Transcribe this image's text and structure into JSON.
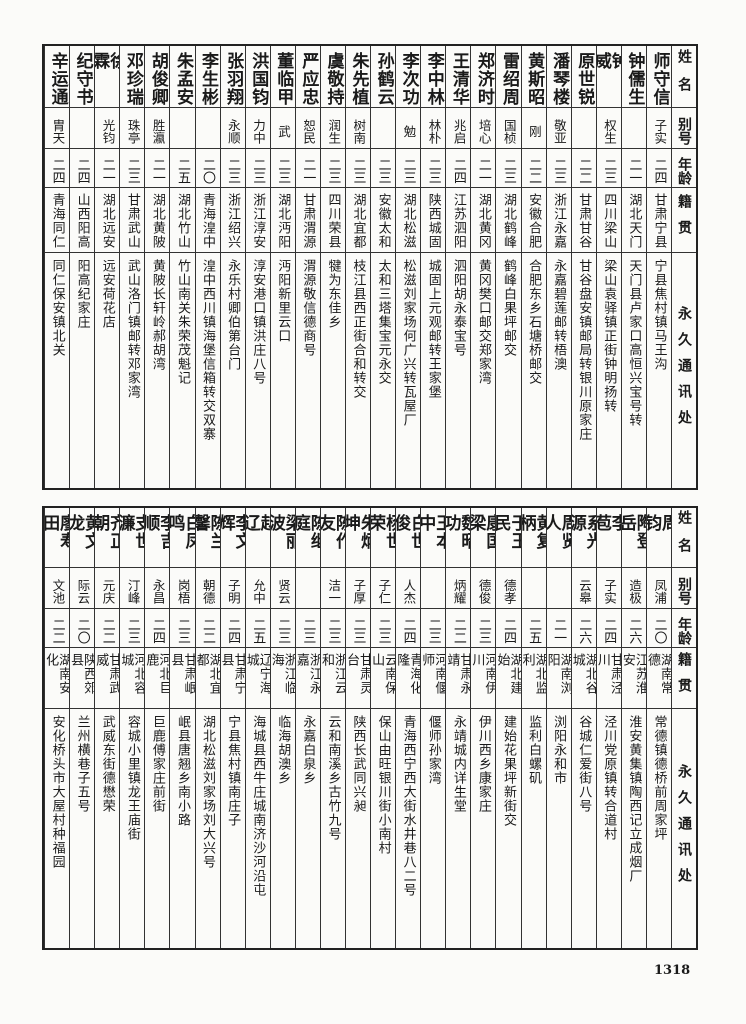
{
  "headers": {
    "name": "姓名",
    "alias": "别号",
    "age": "年龄",
    "origin": "籍贯",
    "address": "永久通讯处"
  },
  "top_table": [
    {
      "name": "师守信",
      "alias": "子实",
      "age": "二四",
      "origin": "甘肃宁县",
      "address": "宁县焦村镇马王沟"
    },
    {
      "name": "钟儒生",
      "alias": "",
      "age": "二一",
      "origin": "湖北天门",
      "address": "天门县卢家口高恒兴宝号转"
    },
    {
      "name": "钟威",
      "alias": "权生",
      "age": "二三",
      "origin": "四川梁山",
      "address": "梁山袁驿镇正街钟明扬转"
    },
    {
      "name": "原世锐",
      "alias": "",
      "age": "二二",
      "origin": "甘肃甘谷",
      "address": "甘谷盘安镇邮局转银川原家庄"
    },
    {
      "name": "潘琴楼",
      "alias": "敬亚",
      "age": "二三",
      "origin": "浙江永嘉",
      "address": "永嘉碧莲邮转梧澳"
    },
    {
      "name": "黄斯昭",
      "alias": "刚",
      "age": "二二",
      "origin": "安徽合肥",
      "address": "合肥东乡石塘桥邮交"
    },
    {
      "name": "雷绍周",
      "alias": "国桢",
      "age": "二三",
      "origin": "湖北鹤峰",
      "address": "鹤峰白果坪邮交"
    },
    {
      "name": "郑济时",
      "alias": "培心",
      "age": "二一",
      "origin": "湖北黄冈",
      "address": "黄冈樊口邮交郑家湾"
    },
    {
      "name": "王清华",
      "alias": "兆启",
      "age": "二四",
      "origin": "江苏泗阳",
      "address": "泗阳胡永泰宝号"
    },
    {
      "name": "李中林",
      "alias": "林朴",
      "age": "二三",
      "origin": "陕西城固",
      "address": "城固上元观邮转王家堡"
    },
    {
      "name": "李次功",
      "alias": "勉",
      "age": "二三",
      "origin": "湖北松滋",
      "address": "松滋刘家场何广兴转瓦屋厂"
    },
    {
      "name": "孙鹤云",
      "alias": "",
      "age": "二三",
      "origin": "安徽太和",
      "address": "太和三塔集宝元永交"
    },
    {
      "name": "朱先植",
      "alias": "树南",
      "age": "二三",
      "origin": "湖北宜都",
      "address": "枝江县西正街合和转交"
    },
    {
      "name": "虞敬持",
      "alias": "润生",
      "age": "二三",
      "origin": "四川荣县",
      "address": "犍为东佳乡"
    },
    {
      "name": "严应忠",
      "alias": "恕民",
      "age": "二一",
      "origin": "甘肃渭源",
      "address": "渭源敬信德商号"
    },
    {
      "name": "董临甲",
      "alias": "武",
      "age": "二三",
      "origin": "湖北沔阳",
      "address": "沔阳新里云口"
    },
    {
      "name": "洪国钧",
      "alias": "力中",
      "age": "二三",
      "origin": "浙江淳安",
      "address": "淳安港口镇洪庄八号"
    },
    {
      "name": "张羽翔",
      "alias": "永顺",
      "age": "二三",
      "origin": "浙江绍兴",
      "address": "永乐村卿伯第台门"
    },
    {
      "name": "李生彬",
      "alias": "",
      "age": "二〇",
      "origin": "青海湟中",
      "address": "湟中西川镇海堡信箱转交双寨"
    },
    {
      "name": "朱孟安",
      "alias": "",
      "age": "二五",
      "origin": "湖北竹山",
      "address": "竹山南关朱荣茂魁记"
    },
    {
      "name": "胡俊卿",
      "alias": "胜瀛",
      "age": "二一",
      "origin": "湖北黄陂",
      "address": "黄陂长轩岭郝胡湾"
    },
    {
      "name": "邓珍瑞",
      "alias": "珠亭",
      "age": "二三",
      "origin": "甘肃武山",
      "address": "武山洛门镇邮转邓家湾"
    },
    {
      "name": "徐霖",
      "alias": "光钧",
      "age": "二一",
      "origin": "湖北远安",
      "address": "远安荷花店"
    },
    {
      "name": "纪守书",
      "alias": "",
      "age": "二四",
      "origin": "山西阳高",
      "address": "阳高纪家庄"
    },
    {
      "name": "辛运通",
      "alias": "胄天",
      "age": "二四",
      "origin": "青海同仁",
      "address": "同仁保安镇北关"
    }
  ],
  "bottom_table": [
    {
      "name": "周钧",
      "alias": "凤浦",
      "age": "二〇",
      "origin": "湖南常德",
      "address": "常德镇德桥前周家坪"
    },
    {
      "name": "陶登岳",
      "alias": "造极",
      "age": "二六",
      "origin": "江苏淮安",
      "address": "淮安黄集镇陶西记立成烟厂"
    },
    {
      "name": "李苞",
      "alias": "子实",
      "age": "二四",
      "origin": "甘肃泾川",
      "address": "泾川党原镇转合道村"
    },
    {
      "name": "系光源",
      "alias": "云皋",
      "age": "二六",
      "origin": "湖北谷城",
      "address": "谷城仁爱街八号"
    },
    {
      "name": "周贤人",
      "alias": "",
      "age": "二一",
      "origin": "湖南浏阳",
      "address": "浏阳永和市"
    },
    {
      "name": "黄复柄",
      "alias": "",
      "age": "二五",
      "origin": "湖北监利",
      "address": "监利白螺矶"
    },
    {
      "name": "于玉民",
      "alias": "德孝",
      "age": "二四",
      "origin": "湖北建始",
      "address": "建始花果坪新街交"
    },
    {
      "name": "康国梁",
      "alias": "德俊",
      "age": "二三",
      "origin": "河南伊川",
      "address": "伊川西乡康家庄"
    },
    {
      "name": "魏昭功",
      "alias": "炳耀",
      "age": "二二",
      "origin": "甘肃永靖",
      "address": "永靖城内详生堂"
    },
    {
      "name": "王本中",
      "alias": "",
      "age": "二三",
      "origin": "河南偃师",
      "address": "偃师孙家湾"
    },
    {
      "name": "白世俊",
      "alias": "人杰",
      "age": "二四",
      "origin": "青海化隆",
      "address": "青海西宁西大街水井巷八二号"
    },
    {
      "name": "杨世荣",
      "alias": "子仁",
      "age": "二三",
      "origin": "云南保山",
      "address": "保山由旺银川街小南村"
    },
    {
      "name": "朱炳坤",
      "alias": "子厚",
      "age": "二三",
      "origin": "甘肃灵台",
      "address": "陕西长武同兴昶"
    },
    {
      "name": "陈作友",
      "alias": "洁一",
      "age": "二三",
      "origin": "浙江云和",
      "address": "云和南溪乡古竹九号"
    },
    {
      "name": "陈继庭",
      "alias": "",
      "age": "二三",
      "origin": "浙江永嘉",
      "address": "永嘉白泉乡"
    },
    {
      "name": "梁丽波",
      "alias": "贤云",
      "age": "二三",
      "origin": "浙江临海",
      "address": "临海胡澳乡"
    },
    {
      "name": "赵辽",
      "alias": "允中",
      "age": "二五",
      "origin": "辽宁海城",
      "address": "海城县西牛庄城南济沙河沿屯"
    },
    {
      "name": "李文辉",
      "alias": "子明",
      "age": "二四",
      "origin": "甘肃宁县",
      "address": "宁县焦村镇南庄子"
    },
    {
      "name": "陈兰馨",
      "alias": "朝德",
      "age": "二二",
      "origin": "湖北宜都",
      "address": "湖北松滋刘家场刘大兴号"
    },
    {
      "name": "白凤鸣",
      "alias": "岗梧",
      "age": "二三",
      "origin": "甘肃岷县",
      "address": "岷县唐翘乡南小路"
    },
    {
      "name": "李吉顺",
      "alias": "永昌",
      "age": "二四",
      "origin": "河北巨鹿",
      "address": "巨鹿傅家庄前街"
    },
    {
      "name": "支世濂",
      "alias": "汀峰",
      "age": "二三",
      "origin": "河北容城",
      "address": "容城小里镇龙王庙街"
    },
    {
      "name": "齐正朝",
      "alias": "元庆",
      "age": "二二",
      "origin": "甘肃武威",
      "address": "武威东街德懋荣"
    },
    {
      "name": "黄文龙",
      "alias": "际云",
      "age": "二〇",
      "origin": "陕西郊县",
      "address": "兰州横巷子五号"
    },
    {
      "name": "廖寿田",
      "alias": "文池",
      "age": "二二",
      "origin": "湖南安化",
      "address": "安化桥头市大屋村种福园"
    }
  ],
  "page_number": "1318"
}
